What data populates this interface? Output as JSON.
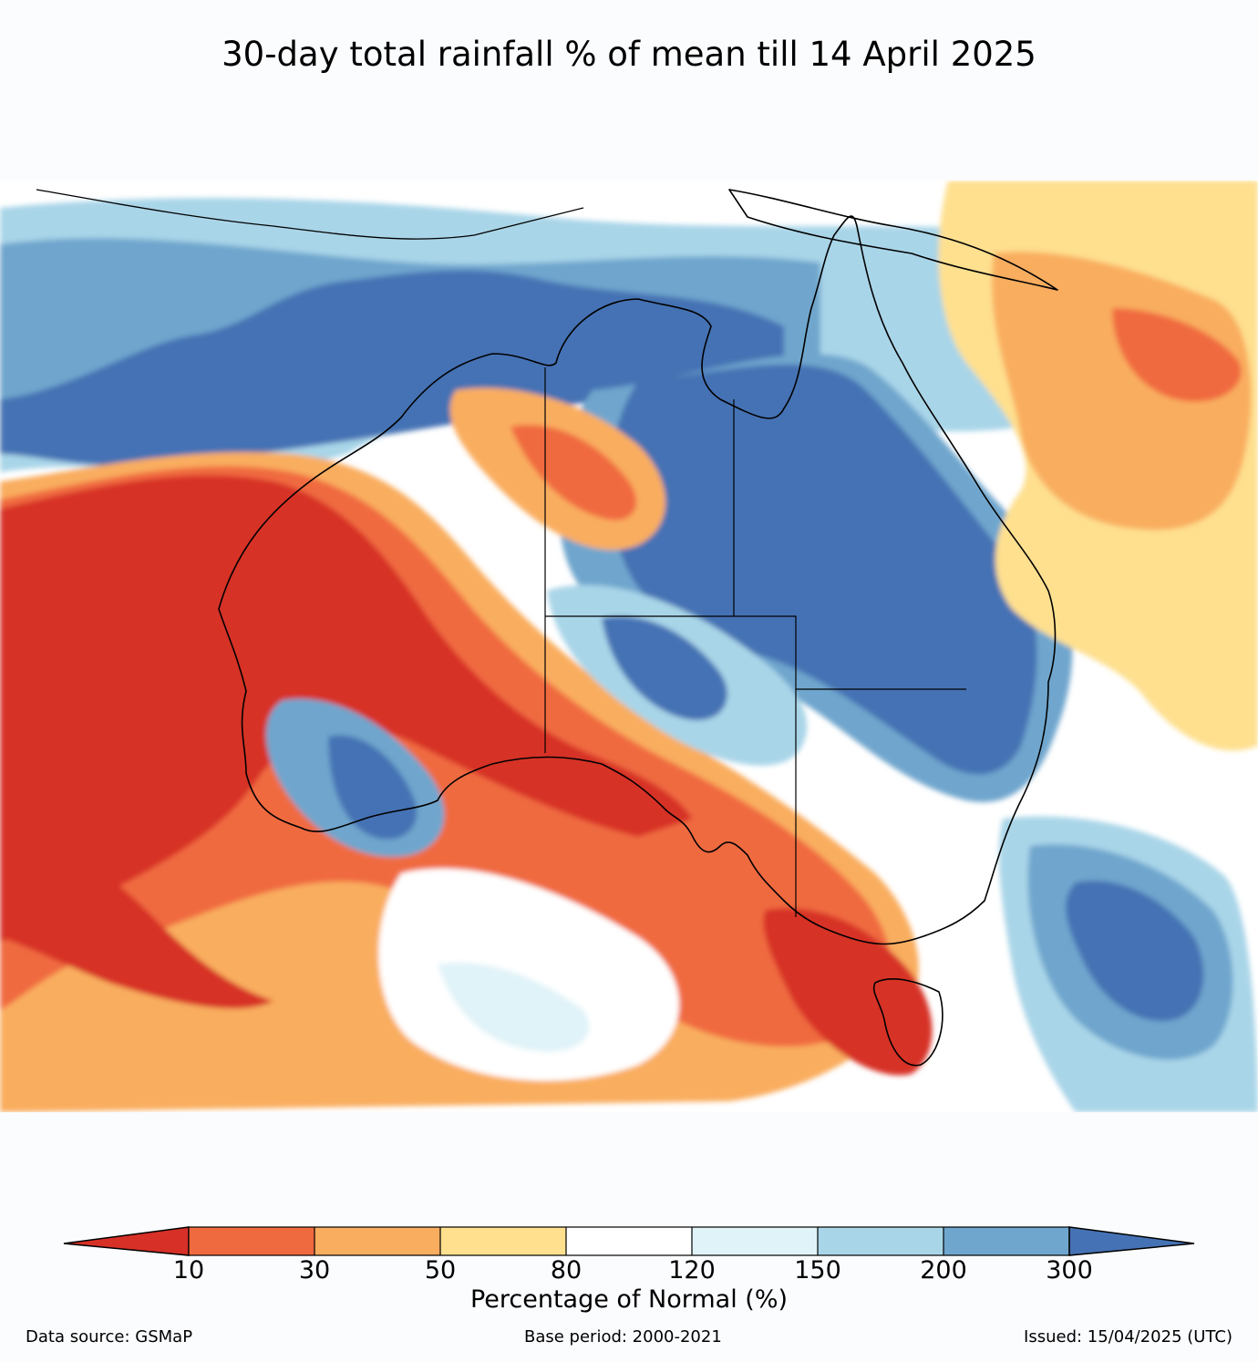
{
  "title": "30-day total rainfall % of mean till 14 April 2025",
  "colorbar": {
    "label": "Percentage of Normal (%)",
    "ticks": [
      "10",
      "30",
      "50",
      "80",
      "120",
      "150",
      "200",
      "300"
    ],
    "colors": [
      "#d73027",
      "#f06a3f",
      "#f9ad5f",
      "#fee08f",
      "#ffffff",
      "#e0f3f8",
      "#a9d5e8",
      "#6fa6cd",
      "#4572b4"
    ]
  },
  "footer": {
    "source": "Data source: GSMaP",
    "base_period": "Base period: 2000-2021",
    "issued": "Issued: 15/04/2025 (UTC)"
  }
}
